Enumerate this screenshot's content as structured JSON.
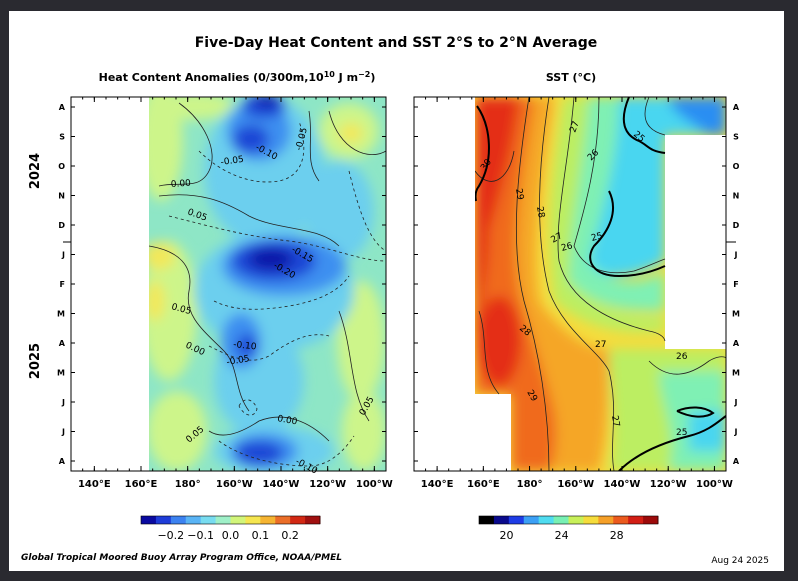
{
  "figure": {
    "title": "Five-Day Heat Content and SST  2°S to 2°N Average",
    "credit": "Global Tropical Moored Buoy Array Program Office, NOAA/PMEL",
    "date": "Aug 24 2025"
  },
  "chart_data": [
    {
      "type": "heatmap",
      "title": "Heat Content Anomalies (0/300m,10",
      "title_sup": "10",
      "title_units": " J m",
      "title_units_sup": "−2",
      "title_close": ")",
      "x_tick_labels": [
        "140°E",
        "160°E",
        "180°",
        "160°W",
        "140°W",
        "120°W",
        "100°W"
      ],
      "x_ticks_deg_east": [
        140,
        160,
        180,
        200,
        220,
        240,
        260
      ],
      "xlim_deg_east": [
        130,
        265
      ],
      "y_month_labels": [
        "A",
        "S",
        "O",
        "N",
        "D",
        "J",
        "F",
        "M",
        "A",
        "M",
        "J",
        "J",
        "A"
      ],
      "year_labels": [
        "2024",
        "2025"
      ],
      "contour_labels": [
        "-0.10",
        "-0.05",
        "0.00",
        "0.05",
        "-0.15",
        "-0.20",
        "0.05",
        "0.00",
        "-0.05",
        "-0.10",
        "0.05",
        "0.00",
        "0.05",
        "-0.10",
        "-0.05"
      ],
      "colorbar": {
        "colors": [
          "#0a0aa0",
          "#1e3cd8",
          "#3c82f0",
          "#5ab4f5",
          "#78dcf0",
          "#9ff0c8",
          "#d2f57a",
          "#f5e650",
          "#f5b432",
          "#eb6e28",
          "#d22814",
          "#a01010"
        ],
        "tick_labels": [
          "−0.2",
          "−0.1",
          "0.0",
          "0.1",
          "0.2"
        ],
        "ticks": [
          -0.2,
          -0.1,
          0.0,
          0.1,
          0.2
        ],
        "range": [
          -0.3,
          0.3
        ]
      },
      "fill_colors": {
        "base": "#8ee6c6",
        "warm": "#cdf58a",
        "warmer": "#f2e85a",
        "cool": "#6ccfee",
        "cold": "#3c8ff0",
        "colder": "#1e46d6",
        "coldest": "#0e14a8"
      }
    },
    {
      "type": "heatmap",
      "title": "SST (°C)",
      "x_tick_labels": [
        "140°E",
        "160°E",
        "180°",
        "160°W",
        "140°W",
        "120°W",
        "100°W"
      ],
      "x_ticks_deg_east": [
        140,
        160,
        180,
        200,
        220,
        240,
        260
      ],
      "xlim_deg_east": [
        130,
        265
      ],
      "y_month_labels": [
        "A",
        "S",
        "O",
        "N",
        "D",
        "J",
        "F",
        "M",
        "A",
        "M",
        "J",
        "J",
        "A"
      ],
      "contour_labels": [
        "30",
        "29",
        "28",
        "27",
        "26",
        "25",
        "27",
        "26",
        "25",
        "28",
        "27",
        "26",
        "29",
        "27",
        "25"
      ],
      "colorbar": {
        "colors": [
          "#000000",
          "#0a0a8c",
          "#1e3ce6",
          "#3ca0f5",
          "#50dcf0",
          "#78f0b4",
          "#c8f05a",
          "#f5dc3c",
          "#f5a028",
          "#eb5a1e",
          "#d21e14",
          "#9c0a0a"
        ],
        "tick_labels": [
          "20",
          "24",
          "28"
        ],
        "ticks": [
          20,
          24,
          28
        ],
        "range": [
          18,
          31
        ]
      },
      "fill_colors": {
        "hottest": "#e42e16",
        "hot": "#f06a1e",
        "warm": "#f5a628",
        "mild": "#f5dc3c",
        "cool": "#bcee62",
        "cooler": "#7ff0b4",
        "cold": "#4ad6f0",
        "colder": "#2a8ef2"
      }
    }
  ]
}
